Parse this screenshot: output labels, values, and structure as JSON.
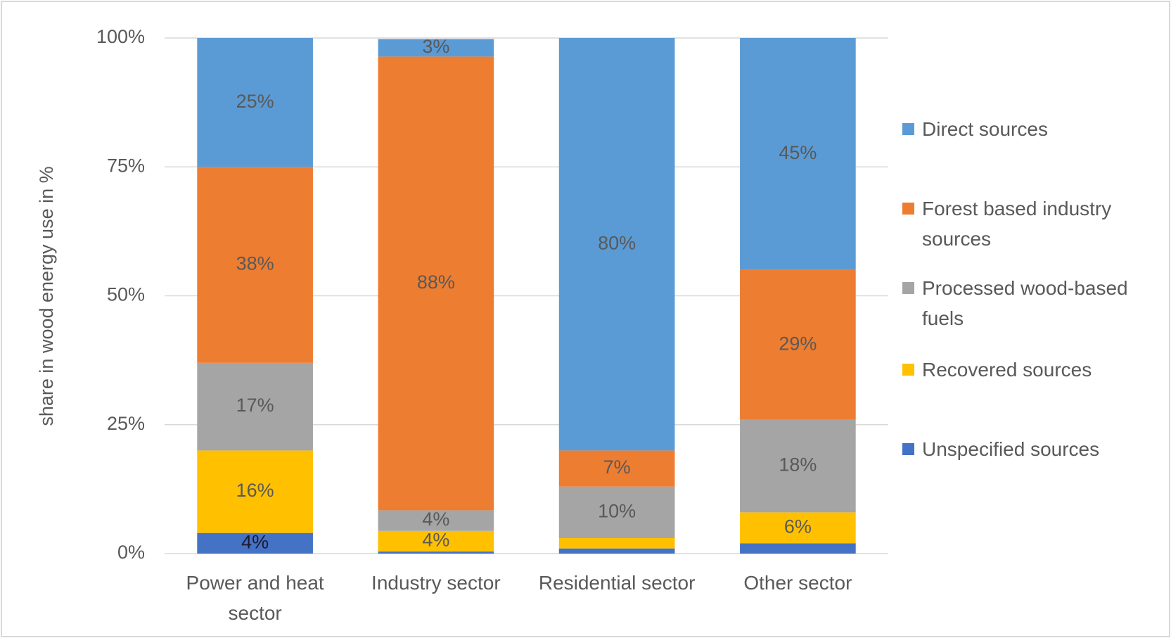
{
  "chart_data": {
    "type": "stacked-bar",
    "y_label": "share in wood energy use in %",
    "categories": [
      "Power and heat sector",
      "Industry sector",
      "Residential sector",
      "Other sector"
    ],
    "series": [
      {
        "name": "Unspecified sources",
        "color": "#4472c4",
        "values": [
          4,
          0.4,
          1,
          2
        ],
        "value_labels": [
          "4%",
          null,
          null,
          null
        ]
      },
      {
        "name": "Recovered sources",
        "color": "#ffc000",
        "values": [
          16,
          4,
          2,
          6
        ],
        "value_labels": [
          "16%",
          "4%",
          null,
          "6%"
        ]
      },
      {
        "name": "Processed wood-based fuels",
        "color": "#a5a5a5",
        "values": [
          17,
          4,
          10,
          18
        ],
        "value_labels": [
          "17%",
          "4%",
          "10%",
          "18%"
        ]
      },
      {
        "name": "Forest based industry sources",
        "color": "#ed7d31",
        "values": [
          38,
          88,
          7,
          29
        ],
        "value_labels": [
          "38%",
          "88%",
          "7%",
          "29%"
        ]
      },
      {
        "name": "Direct sources",
        "color": "#5b9bd5",
        "values": [
          25,
          3.4,
          80,
          45
        ],
        "value_labels": [
          "25%",
          "3%",
          "80%",
          "45%"
        ]
      }
    ],
    "ylim": [
      0,
      100
    ],
    "yticks": [
      {
        "value": 0,
        "label": "0%"
      },
      {
        "value": 25,
        "label": "25%"
      },
      {
        "value": 50,
        "label": "50%"
      },
      {
        "value": 75,
        "label": "75%"
      },
      {
        "value": 100,
        "label": "100%"
      }
    ],
    "grid": true
  }
}
